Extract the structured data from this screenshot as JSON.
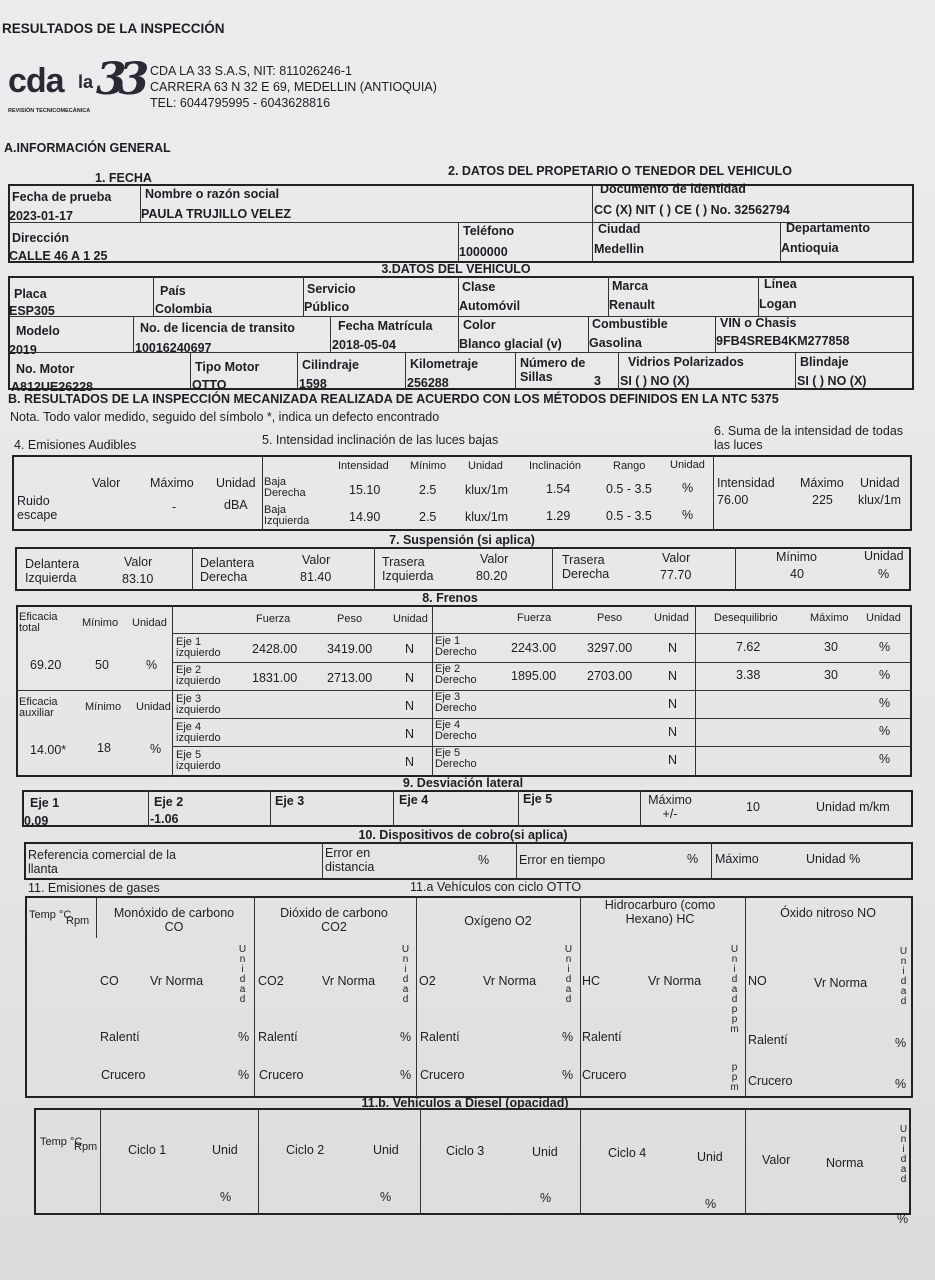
{
  "header": {
    "title": "RESULTADOS DE LA INSPECCIÓN",
    "logo_main": "cda",
    "logo_la": "la",
    "logo_num": "33",
    "logo_sub": "REVISIÓN TECNICOMECÁNICA",
    "company": "CDA LA 33 S.A.S, NIT: 811026246-1",
    "address": "CARRERA 63 N 32 E 69, MEDELLIN (ANTIOQUIA)",
    "phones": "TEL: 6044795995 - 6043628816"
  },
  "section_a": "A.INFORMACIÓN GENERAL",
  "fecha": {
    "title": "1. FECHA",
    "label": "Fecha de prueba",
    "value": "2023-01-17"
  },
  "owner": {
    "title": "2. DATOS DEL PROPETARIO O TENEDOR DEL VEHICULO",
    "name_label": "Nombre o razón social",
    "name": "PAULA TRUJILLO VELEZ",
    "doc_label": "Documento de identidad",
    "doc": "CC (X) NIT ( ) CE ( ) No. 32562794",
    "dir_label": "Dirección",
    "dir": "CALLE 46 A 1 25",
    "tel_label": "Teléfono",
    "tel": "1000000",
    "city_label": "Ciudad",
    "city": "Medellin",
    "dept_label": "Departamento",
    "dept": "Antioquia"
  },
  "vehicle": {
    "title": "3.DATOS DEL VEHICULO",
    "fields": [
      {
        "label": "Placa",
        "value": "ESP305"
      },
      {
        "label": "País",
        "value": "Colombia"
      },
      {
        "label": "Servicio",
        "value": "Público"
      },
      {
        "label": "Clase",
        "value": "Automóvil"
      },
      {
        "label": "Marca",
        "value": "Renault"
      },
      {
        "label": "Línea",
        "value": "Logan"
      },
      {
        "label": "Modelo",
        "value": "2019"
      },
      {
        "label": "No. de licencia de transito",
        "value": "10016240697"
      },
      {
        "label": "Fecha Matrícula",
        "value": "2018-05-04"
      },
      {
        "label": "Color",
        "value": "Blanco glacial (v)"
      },
      {
        "label": "Combustible",
        "value": "Gasolina"
      },
      {
        "label": "VIN o Chasis",
        "value": "9FB4SREB4KM277858"
      },
      {
        "label": "No. Motor",
        "value": "A812UE26228"
      },
      {
        "label": "Tipo Motor",
        "value": "OTTO"
      },
      {
        "label": "Cilindraje",
        "value": "1598"
      },
      {
        "label": "Kilometraje",
        "value": "256288"
      },
      {
        "label": "Número de Sillas",
        "value": "3"
      },
      {
        "label": "Vidrios Polarizados",
        "value": "SI ( ) NO (X)"
      },
      {
        "label": "Blindaje",
        "value": "SI ( ) NO (X)"
      }
    ]
  },
  "section_b": {
    "title": "B. RESULTADOS DE LA INSPECCIÓN MECANIZADA REALIZADA DE ACUERDO CON LOS MÉTODOS DEFINIDOS EN LA NTC 5375",
    "note": "Nota. Todo valor medido, seguido del símbolo *, indica un defecto encontrado"
  },
  "audible": {
    "title": "4. Emisiones Audibles",
    "h_valor": "Valor",
    "h_max": "Máximo",
    "h_unit": "Unidad",
    "row_label": "Ruido escape",
    "valor": "",
    "max": "-",
    "unit": "dBA"
  },
  "lights": {
    "title": "5. Intensidad inclinación de las luces bajas",
    "headers": [
      "Intensidad",
      "Mínimo",
      "Unidad",
      "Inclinación",
      "Rango",
      "Unidad"
    ],
    "rows": [
      {
        "label": "Baja Derecha",
        "values": [
          "15.10",
          "2.5",
          "klux/1m",
          "1.54",
          "0.5 - 3.5",
          "%"
        ]
      },
      {
        "label": "Baja Izquierda",
        "values": [
          "14.90",
          "2.5",
          "klux/1m",
          "1.29",
          "0.5 - 3.5",
          "%"
        ]
      }
    ]
  },
  "lights_sum": {
    "title": "6. Suma de la intensidad de todas las luces",
    "headers": [
      "Intensidad",
      "Máximo",
      "Unidad"
    ],
    "values": [
      "76.00",
      "225",
      "klux/1m"
    ]
  },
  "suspension": {
    "title": "7. Suspensión (si aplica)",
    "items": [
      {
        "label": "Delantera Izquierda",
        "h": "Valor",
        "value": "83.10"
      },
      {
        "label": "Delantera Derecha",
        "h": "Valor",
        "value": "81.40"
      },
      {
        "label": "Trasera Izquierda",
        "h": "Valor",
        "value": "80.20"
      },
      {
        "label": "Trasera Derecha",
        "h": "Valor",
        "value": "77.70"
      }
    ],
    "min_label": "Mínimo",
    "min": "40",
    "unit_label": "Unidad",
    "unit": "%"
  },
  "brakes": {
    "title": "8. Frenos",
    "total": {
      "label": "Eficacia total",
      "min_label": "Mínimo",
      "unit_label": "Unidad",
      "value": "69.20",
      "min": "50",
      "unit": "%"
    },
    "aux": {
      "label": "Eficacia auxiliar",
      "min_label": "Mínimo",
      "unit_label": "Unidad",
      "value": "14.00*",
      "min": "18",
      "unit": "%"
    },
    "headers": {
      "fuerza": "Fuerza",
      "peso": "Peso",
      "unidad": "Unidad",
      "deseq": "Desequilibrio",
      "max": "Máximo"
    },
    "rows": [
      {
        "left": "Eje 1 izquierdo",
        "lf": "2428.00",
        "lp": "3419.00",
        "lu": "N",
        "right": "Eje 1 Derecho",
        "rf": "2243.00",
        "rp": "3297.00",
        "ru": "N",
        "deseq": "7.62",
        "max": "30",
        "unit": "%"
      },
      {
        "left": "Eje 2 izquierdo",
        "lf": "1831.00",
        "lp": "2713.00",
        "lu": "N",
        "right": "Eje 2 Derecho",
        "rf": "1895.00",
        "rp": "2703.00",
        "ru": "N",
        "deseq": "3.38",
        "max": "30",
        "unit": "%"
      },
      {
        "left": "Eje 3 izquierdo",
        "lf": "",
        "lp": "",
        "lu": "N",
        "right": "Eje 3 Derecho",
        "rf": "",
        "rp": "",
        "ru": "N",
        "deseq": "",
        "max": "",
        "unit": "%"
      },
      {
        "left": "Eje 4 izquierdo",
        "lf": "",
        "lp": "",
        "lu": "N",
        "right": "Eje 4 Derecho",
        "rf": "",
        "rp": "",
        "ru": "N",
        "deseq": "",
        "max": "",
        "unit": "%"
      },
      {
        "left": "Eje 5 izquierdo",
        "lf": "",
        "lp": "",
        "lu": "N",
        "right": "Eje 5 Derecho",
        "rf": "",
        "rp": "",
        "ru": "N",
        "deseq": "",
        "max": "",
        "unit": "%"
      }
    ]
  },
  "deviation": {
    "title": "9. Desviación lateral",
    "axes": [
      {
        "label": "Eje 1",
        "value": "0.09"
      },
      {
        "label": "Eje 2",
        "value": "-1.06"
      },
      {
        "label": "Eje 3",
        "value": ""
      },
      {
        "label": "Eje 4",
        "value": ""
      },
      {
        "label": "Eje 5",
        "value": ""
      }
    ],
    "max_label": "Máximo +/-",
    "max": "10",
    "unit": "Unidad m/km"
  },
  "devices": {
    "title": "10. Dispositivos de cobro(si aplica)",
    "tire": "Referencia comercial de la llanta",
    "dist": "Error en distancia",
    "pct1": "%",
    "time": "Error en tiempo",
    "pct2": "%",
    "max": "Máximo",
    "unit": "Unidad %"
  },
  "gases": {
    "title": "11. Emisiones de gases",
    "otto_title": "11.a Vehículos con ciclo OTTO",
    "temp": "Temp °C",
    "rpm": "Rpm",
    "vr": "Vr Norma",
    "ralenti": "Ralentí",
    "crucero": "Crucero",
    "columns": [
      {
        "name": "Monóxido de carbono CO",
        "code": "CO",
        "unit_v": "Unidad",
        "unit": "%"
      },
      {
        "name": "Dióxido de carbono CO2",
        "code": "CO2",
        "unit_v": "Unidad",
        "unit": "%"
      },
      {
        "name": "Oxígeno O2",
        "code": "O2",
        "unit_v": "Unidad",
        "unit": "%"
      },
      {
        "name": "Hidrocarburo (como Hexano) HC",
        "code": "HC",
        "unit_v": "Unidad",
        "unit": "ppm"
      },
      {
        "name": "Óxido nitroso NO",
        "code": "NO",
        "unit_v": "Unidad",
        "unit": "%"
      }
    ]
  },
  "diesel": {
    "title": "11.b. Vehículos a Diesel (opacidad)",
    "temp": "Temp °C",
    "rpm": "Rpm",
    "cycles": [
      "Ciclo 1",
      "Ciclo 2",
      "Ciclo 3",
      "Ciclo 4"
    ],
    "unid": "Unid",
    "pct": "%",
    "valor": "Valor",
    "norma": "Norma",
    "unit_v": "Unidad",
    "unit": "%"
  }
}
